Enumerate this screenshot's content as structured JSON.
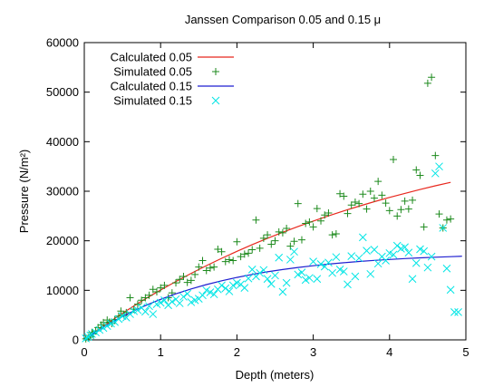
{
  "chart_data": {
    "type": "scatter",
    "title": "Janssen Comparison 0.05 and 0.15 μ",
    "xlabel": "Depth (meters)",
    "ylabel": "Pressure (N/m²)",
    "xlim": [
      0,
      5
    ],
    "ylim": [
      0,
      60000
    ],
    "x_ticks": [
      "0",
      "1",
      "2",
      "3",
      "4",
      "5"
    ],
    "y_ticks": [
      "0",
      "10000",
      "20000",
      "30000",
      "40000",
      "50000",
      "60000"
    ],
    "grid": false,
    "legend_position": "top-left",
    "series": [
      {
        "name": "Calculated 0.05",
        "kind": "line",
        "color": "#e8281e",
        "x": [
          0,
          0.1,
          0.2,
          0.3,
          0.4,
          0.5,
          0.6,
          0.7,
          0.8,
          0.9,
          1.0,
          1.2,
          1.4,
          1.6,
          1.8,
          2.0,
          2.2,
          2.4,
          2.6,
          2.8,
          3.0,
          3.2,
          3.4,
          3.6,
          3.8,
          4.0,
          4.2,
          4.4,
          4.6,
          4.8
        ],
        "y": [
          0,
          1130,
          2230,
          3300,
          4350,
          5360,
          6350,
          7320,
          8260,
          9180,
          10070,
          11780,
          13420,
          14980,
          16460,
          17870,
          19220,
          20500,
          21710,
          22880,
          23980,
          25030,
          26030,
          26980,
          27890,
          28750,
          29570,
          30350,
          31090,
          31800
        ]
      },
      {
        "name": "Simulated 0.05",
        "kind": "points",
        "marker": "plus",
        "color": "#1d8a1d",
        "x": [
          0.02,
          0.05,
          0.08,
          0.1,
          0.12,
          0.15,
          0.18,
          0.22,
          0.25,
          0.3,
          0.33,
          0.36,
          0.4,
          0.45,
          0.48,
          0.52,
          0.55,
          0.6,
          0.65,
          0.7,
          0.75,
          0.8,
          0.85,
          0.9,
          0.95,
          1.0,
          1.05,
          1.1,
          1.15,
          1.2,
          1.25,
          1.3,
          1.35,
          1.4,
          1.45,
          1.5,
          1.55,
          1.6,
          1.65,
          1.7,
          1.75,
          1.8,
          1.85,
          1.9,
          1.95,
          2.0,
          2.05,
          2.1,
          2.15,
          2.2,
          2.25,
          2.3,
          2.35,
          2.4,
          2.45,
          2.5,
          2.55,
          2.6,
          2.65,
          2.7,
          2.75,
          2.8,
          2.85,
          2.9,
          2.95,
          3.0,
          3.05,
          3.1,
          3.15,
          3.2,
          3.25,
          3.3,
          3.35,
          3.4,
          3.45,
          3.5,
          3.55,
          3.6,
          3.65,
          3.7,
          3.75,
          3.8,
          3.85,
          3.9,
          3.95,
          4.0,
          4.05,
          4.1,
          4.15,
          4.2,
          4.25,
          4.3,
          4.35,
          4.4,
          4.45,
          4.5,
          4.55,
          4.6,
          4.65,
          4.7,
          4.75,
          4.8
        ],
        "y": [
          200,
          400,
          700,
          1500,
          1200,
          1800,
          2500,
          3000,
          3500,
          4000,
          3600,
          3300,
          4100,
          4800,
          5800,
          5000,
          5500,
          8500,
          6200,
          7200,
          8000,
          8500,
          9000,
          10200,
          9700,
          10500,
          11000,
          8500,
          9500,
          11500,
          12200,
          12800,
          11600,
          12000,
          13200,
          14700,
          16000,
          14000,
          14500,
          14700,
          18300,
          17800,
          15800,
          16200,
          16000,
          19800,
          16800,
          17300,
          17500,
          18200,
          24200,
          18500,
          20500,
          21200,
          19300,
          20000,
          21800,
          21600,
          22500,
          18900,
          19900,
          27500,
          20200,
          23500,
          23800,
          22800,
          26500,
          24000,
          25200,
          25600,
          21200,
          21400,
          29500,
          29000,
          25500,
          27200,
          27800,
          27500,
          29400,
          26400,
          30000,
          28600,
          32000,
          29200,
          27600,
          26100,
          36400,
          25000,
          26300,
          28000,
          26400,
          28200,
          34300,
          33200,
          22800,
          51800,
          53000,
          37200,
          25400,
          22600,
          24200,
          24400
        ]
      },
      {
        "name": "Calculated 0.15",
        "kind": "line",
        "color": "#1f1fd0",
        "x": [
          0,
          0.1,
          0.2,
          0.3,
          0.4,
          0.5,
          0.6,
          0.7,
          0.8,
          0.9,
          1.0,
          1.2,
          1.4,
          1.6,
          1.8,
          2.0,
          2.2,
          2.4,
          2.6,
          2.8,
          3.0,
          3.2,
          3.4,
          3.6,
          3.8,
          4.0,
          4.2,
          4.4,
          4.6,
          4.8,
          4.95
        ],
        "y": [
          0,
          1060,
          2060,
          3000,
          3880,
          4710,
          5490,
          6220,
          6910,
          7560,
          8170,
          9290,
          10280,
          11150,
          11920,
          12600,
          13200,
          13730,
          14200,
          14610,
          14970,
          15290,
          15570,
          15820,
          16040,
          16230,
          16400,
          16550,
          16680,
          16800,
          16880
        ]
      },
      {
        "name": "Simulated 0.15",
        "kind": "points",
        "marker": "cross",
        "color": "#00e5e5",
        "x": [
          0.02,
          0.05,
          0.08,
          0.1,
          0.15,
          0.2,
          0.25,
          0.3,
          0.35,
          0.4,
          0.45,
          0.5,
          0.55,
          0.6,
          0.65,
          0.7,
          0.75,
          0.8,
          0.85,
          0.9,
          0.95,
          1.0,
          1.05,
          1.1,
          1.15,
          1.2,
          1.25,
          1.3,
          1.35,
          1.4,
          1.45,
          1.5,
          1.55,
          1.6,
          1.65,
          1.7,
          1.75,
          1.8,
          1.85,
          1.9,
          1.95,
          2.0,
          2.05,
          2.1,
          2.15,
          2.2,
          2.25,
          2.3,
          2.35,
          2.4,
          2.45,
          2.5,
          2.55,
          2.6,
          2.65,
          2.7,
          2.75,
          2.8,
          2.85,
          2.9,
          2.95,
          3.0,
          3.05,
          3.1,
          3.15,
          3.2,
          3.25,
          3.3,
          3.35,
          3.4,
          3.45,
          3.5,
          3.55,
          3.6,
          3.65,
          3.7,
          3.75,
          3.8,
          3.85,
          3.9,
          3.95,
          4.0,
          4.05,
          4.1,
          4.15,
          4.2,
          4.25,
          4.3,
          4.35,
          4.4,
          4.45,
          4.5,
          4.55,
          4.6,
          4.65,
          4.7,
          4.75,
          4.8,
          4.85,
          4.9
        ],
        "y": [
          300,
          600,
          900,
          1200,
          1500,
          2000,
          2400,
          2800,
          3300,
          3600,
          4200,
          4800,
          4500,
          5200,
          5800,
          6000,
          6500,
          5700,
          6800,
          5200,
          7200,
          7500,
          8000,
          7000,
          7700,
          8200,
          7400,
          8700,
          9300,
          7600,
          8000,
          8300,
          9000,
          10000,
          9600,
          9200,
          10200,
          11000,
          10400,
          9800,
          11000,
          11500,
          11200,
          10500,
          12400,
          14200,
          12800,
          13500,
          14100,
          12300,
          11300,
          13000,
          16600,
          9700,
          11500,
          16200,
          17800,
          13200,
          13600,
          12100,
          12500,
          15800,
          12300,
          15300,
          14800,
          15600,
          13500,
          16700,
          14200,
          13800,
          11200,
          16900,
          12800,
          16500,
          20700,
          18000,
          13300,
          18200,
          15400,
          16800,
          16000,
          17500,
          17200,
          19000,
          18400,
          18700,
          17600,
          12300,
          15500,
          18300,
          17900,
          14600,
          16800,
          33600,
          35000,
          22600,
          14400,
          10100,
          5600,
          5600
        ]
      }
    ]
  }
}
